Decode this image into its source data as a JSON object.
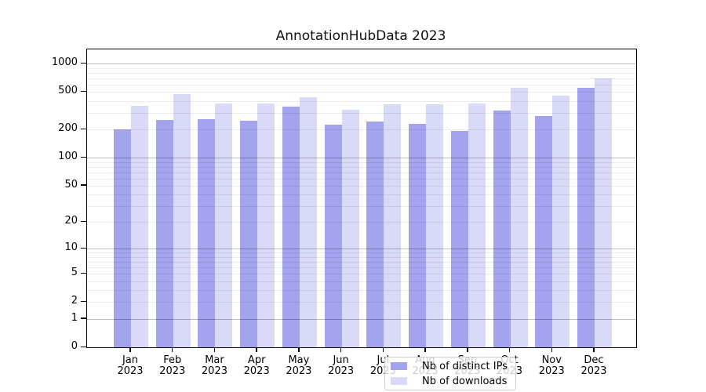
{
  "chart_data": {
    "type": "bar",
    "title": "AnnotationHubData 2023",
    "categories": [
      "Jan",
      "Feb",
      "Mar",
      "Apr",
      "May",
      "Jun",
      "Jul",
      "Aug",
      "Sep",
      "Oct",
      "Nov",
      "Dec"
    ],
    "category_year": "2023",
    "series": [
      {
        "name": "Nb of distinct IPs",
        "color": "#a3a3ee",
        "values": [
          199,
          250,
          258,
          247,
          348,
          223,
          241,
          229,
          194,
          320,
          276,
          551
        ]
      },
      {
        "name": "Nb of downloads",
        "color": "#d9d9f8",
        "values": [
          357,
          473,
          377,
          376,
          438,
          322,
          367,
          369,
          374,
          558,
          455,
          695
        ]
      }
    ],
    "yscale": "log1p",
    "yticks": [
      0,
      1,
      2,
      5,
      10,
      20,
      50,
      100,
      200,
      500,
      1000
    ],
    "ylim": [
      0,
      1400
    ],
    "xlabel": "",
    "ylabel": "",
    "grid": "horizontal major+minor, drawn over bars",
    "legend_position": "lower center"
  },
  "colors": {
    "spine": "#000000",
    "minor_grid": "rgba(0,0,0,0.08)",
    "major_grid": "rgba(0,0,0,0.26)",
    "legend_border": "#cccccc",
    "legend_background": "rgba(255,255,255,0.8)",
    "text": "#000000"
  }
}
